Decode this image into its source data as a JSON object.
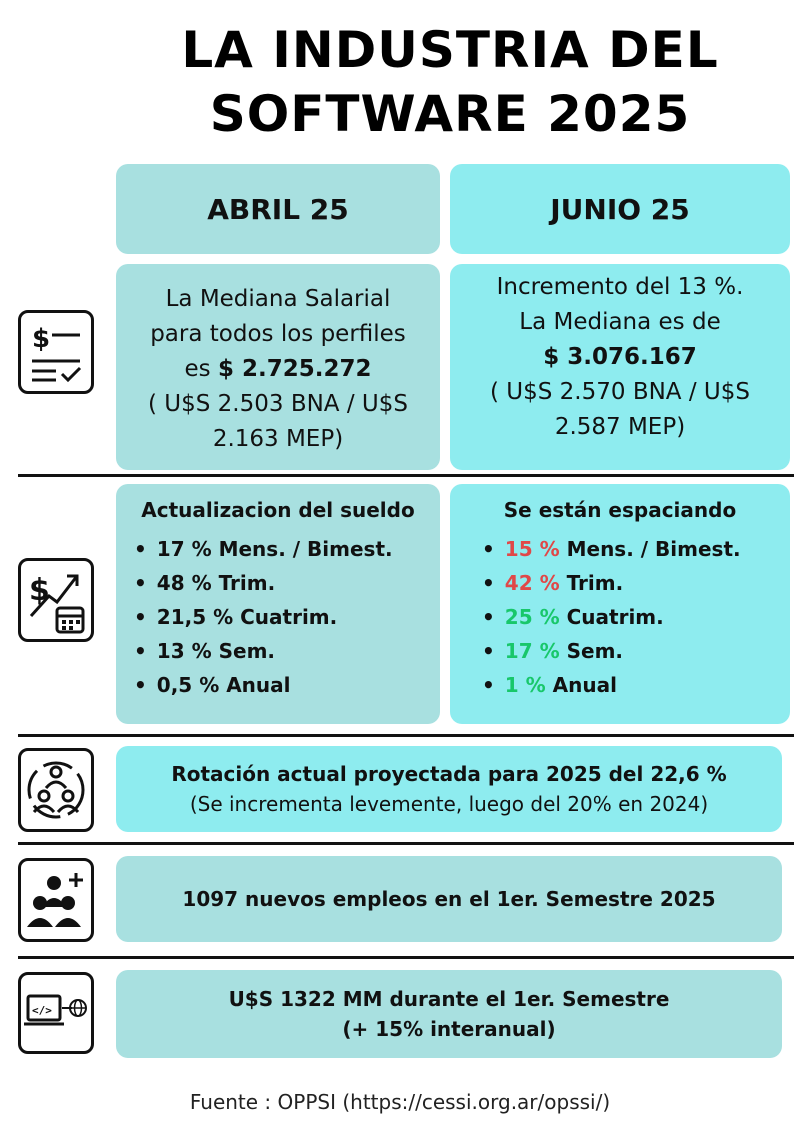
{
  "title": {
    "line1": "LA INDUSTRIA DEL",
    "line2": "SOFTWARE 2025"
  },
  "columns": {
    "left_header": "ABRIL 25",
    "right_header": "JUNIO 25"
  },
  "salary": {
    "left": {
      "line1": "La Mediana Salarial",
      "line2": "para todos los perfiles",
      "line3_prefix": "es ",
      "line3_value": "$ 2.725.272",
      "line4": "( U$S 2.503 BNA  / U$S",
      "line5": "2.163 MEP)"
    },
    "right": {
      "line1": "Incremento del 13 %.",
      "line2": "La Mediana es de",
      "line3_value": "$ 3.076.167",
      "line4": "( U$S 2.570 BNA / U$S",
      "line5": "2.587 MEP)"
    }
  },
  "updates": {
    "left": {
      "title": "Actualizacion del sueldo",
      "items": [
        "17 % Mens. / Bimest.",
        "48 % Trim.",
        "21,5 % Cuatrim.",
        "13 % Sem.",
        "0,5 % Anual"
      ]
    },
    "right": {
      "title": "Se están espaciando",
      "items": [
        {
          "pct": "15 %",
          "label": " Mens. / Bimest.",
          "color": "#e04848"
        },
        {
          "pct": "42 %",
          "label": " Trim.",
          "color": "#e04848"
        },
        {
          "pct": "25 %",
          "label": " Cuatrim.",
          "color": "#18c76a"
        },
        {
          "pct": "17 %",
          "label": " Sem.",
          "color": "#18c76a"
        },
        {
          "pct": "1 %",
          "label": " Anual",
          "color": "#18c76a"
        }
      ]
    }
  },
  "rotation": {
    "line1": "Rotación actual proyectada para 2025 del 22,6 %",
    "line2": "(Se incrementa levemente, luego del 20% en 2024)"
  },
  "jobs": {
    "line1": "1097 nuevos empleos en el 1er. Semestre 2025"
  },
  "exports": {
    "line1": "U$S 1322 MM durante el 1er. Semestre",
    "line2": "(+ 15% interanual)"
  },
  "source": "Fuente : OPPSI (https://cessi.org.ar/opssi/)",
  "icons": [
    "document-dollar-icon",
    "growth-calendar-icon",
    "rotation-people-icon",
    "add-people-icon",
    "code-globe-icon"
  ],
  "colors": {
    "teal": "#a8e0e0",
    "cyan": "#8eecef",
    "red": "#e04848",
    "green": "#18c76a"
  }
}
